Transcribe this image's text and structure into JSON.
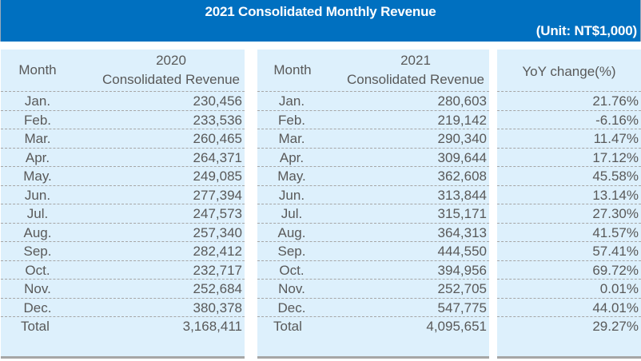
{
  "header": {
    "title": "2021 Consolidated Monthly Revenue",
    "unit": "(Unit: NT$1,000)"
  },
  "colors": {
    "banner": "#0070c0",
    "panel_bg": "#ddf0fc",
    "text": "#595959",
    "divider": "#a6a6a6"
  },
  "table2020": {
    "month_header": "Month",
    "value_header_line1": "2020",
    "value_header_line2": "Consolidated Revenue",
    "rows": [
      {
        "month": "Jan.",
        "value": "230,456"
      },
      {
        "month": "Feb.",
        "value": "233,536"
      },
      {
        "month": "Mar.",
        "value": "260,465"
      },
      {
        "month": "Apr.",
        "value": "264,371"
      },
      {
        "month": "May.",
        "value": "249,085"
      },
      {
        "month": "Jun.",
        "value": "277,394"
      },
      {
        "month": "Jul.",
        "value": "247,573"
      },
      {
        "month": "Aug.",
        "value": "257,340"
      },
      {
        "month": "Sep.",
        "value": "282,412"
      },
      {
        "month": "Oct.",
        "value": "232,717"
      },
      {
        "month": "Nov.",
        "value": "252,684"
      },
      {
        "month": "Dec.",
        "value": "380,378"
      },
      {
        "month": "Total",
        "value": "3,168,411"
      }
    ]
  },
  "table2021": {
    "month_header": "Month",
    "value_header_line1": "2021",
    "value_header_line2": "Consolidated Revenue",
    "rows": [
      {
        "month": "Jan.",
        "value": "280,603"
      },
      {
        "month": "Feb.",
        "value": "219,142"
      },
      {
        "month": "Mar.",
        "value": "290,340"
      },
      {
        "month": "Apr.",
        "value": "309,644"
      },
      {
        "month": "May.",
        "value": "362,608"
      },
      {
        "month": "Jun.",
        "value": "313,844"
      },
      {
        "month": "Jul.",
        "value": "315,171"
      },
      {
        "month": "Aug.",
        "value": "364,313"
      },
      {
        "month": "Sep.",
        "value": "444,550"
      },
      {
        "month": "Oct.",
        "value": "394,956"
      },
      {
        "month": "Nov.",
        "value": "252,705"
      },
      {
        "month": "Dec.",
        "value": "547,775"
      },
      {
        "month": "Total",
        "value": "4,095,651"
      }
    ]
  },
  "yoy": {
    "header": "YoY change(%)",
    "rows": [
      "21.76%",
      "-6.16%",
      "11.47%",
      "17.12%",
      "45.58%",
      "13.14%",
      "27.30%",
      "41.57%",
      "57.41%",
      "69.72%",
      "0.01%",
      "44.01%",
      "29.27%"
    ]
  }
}
